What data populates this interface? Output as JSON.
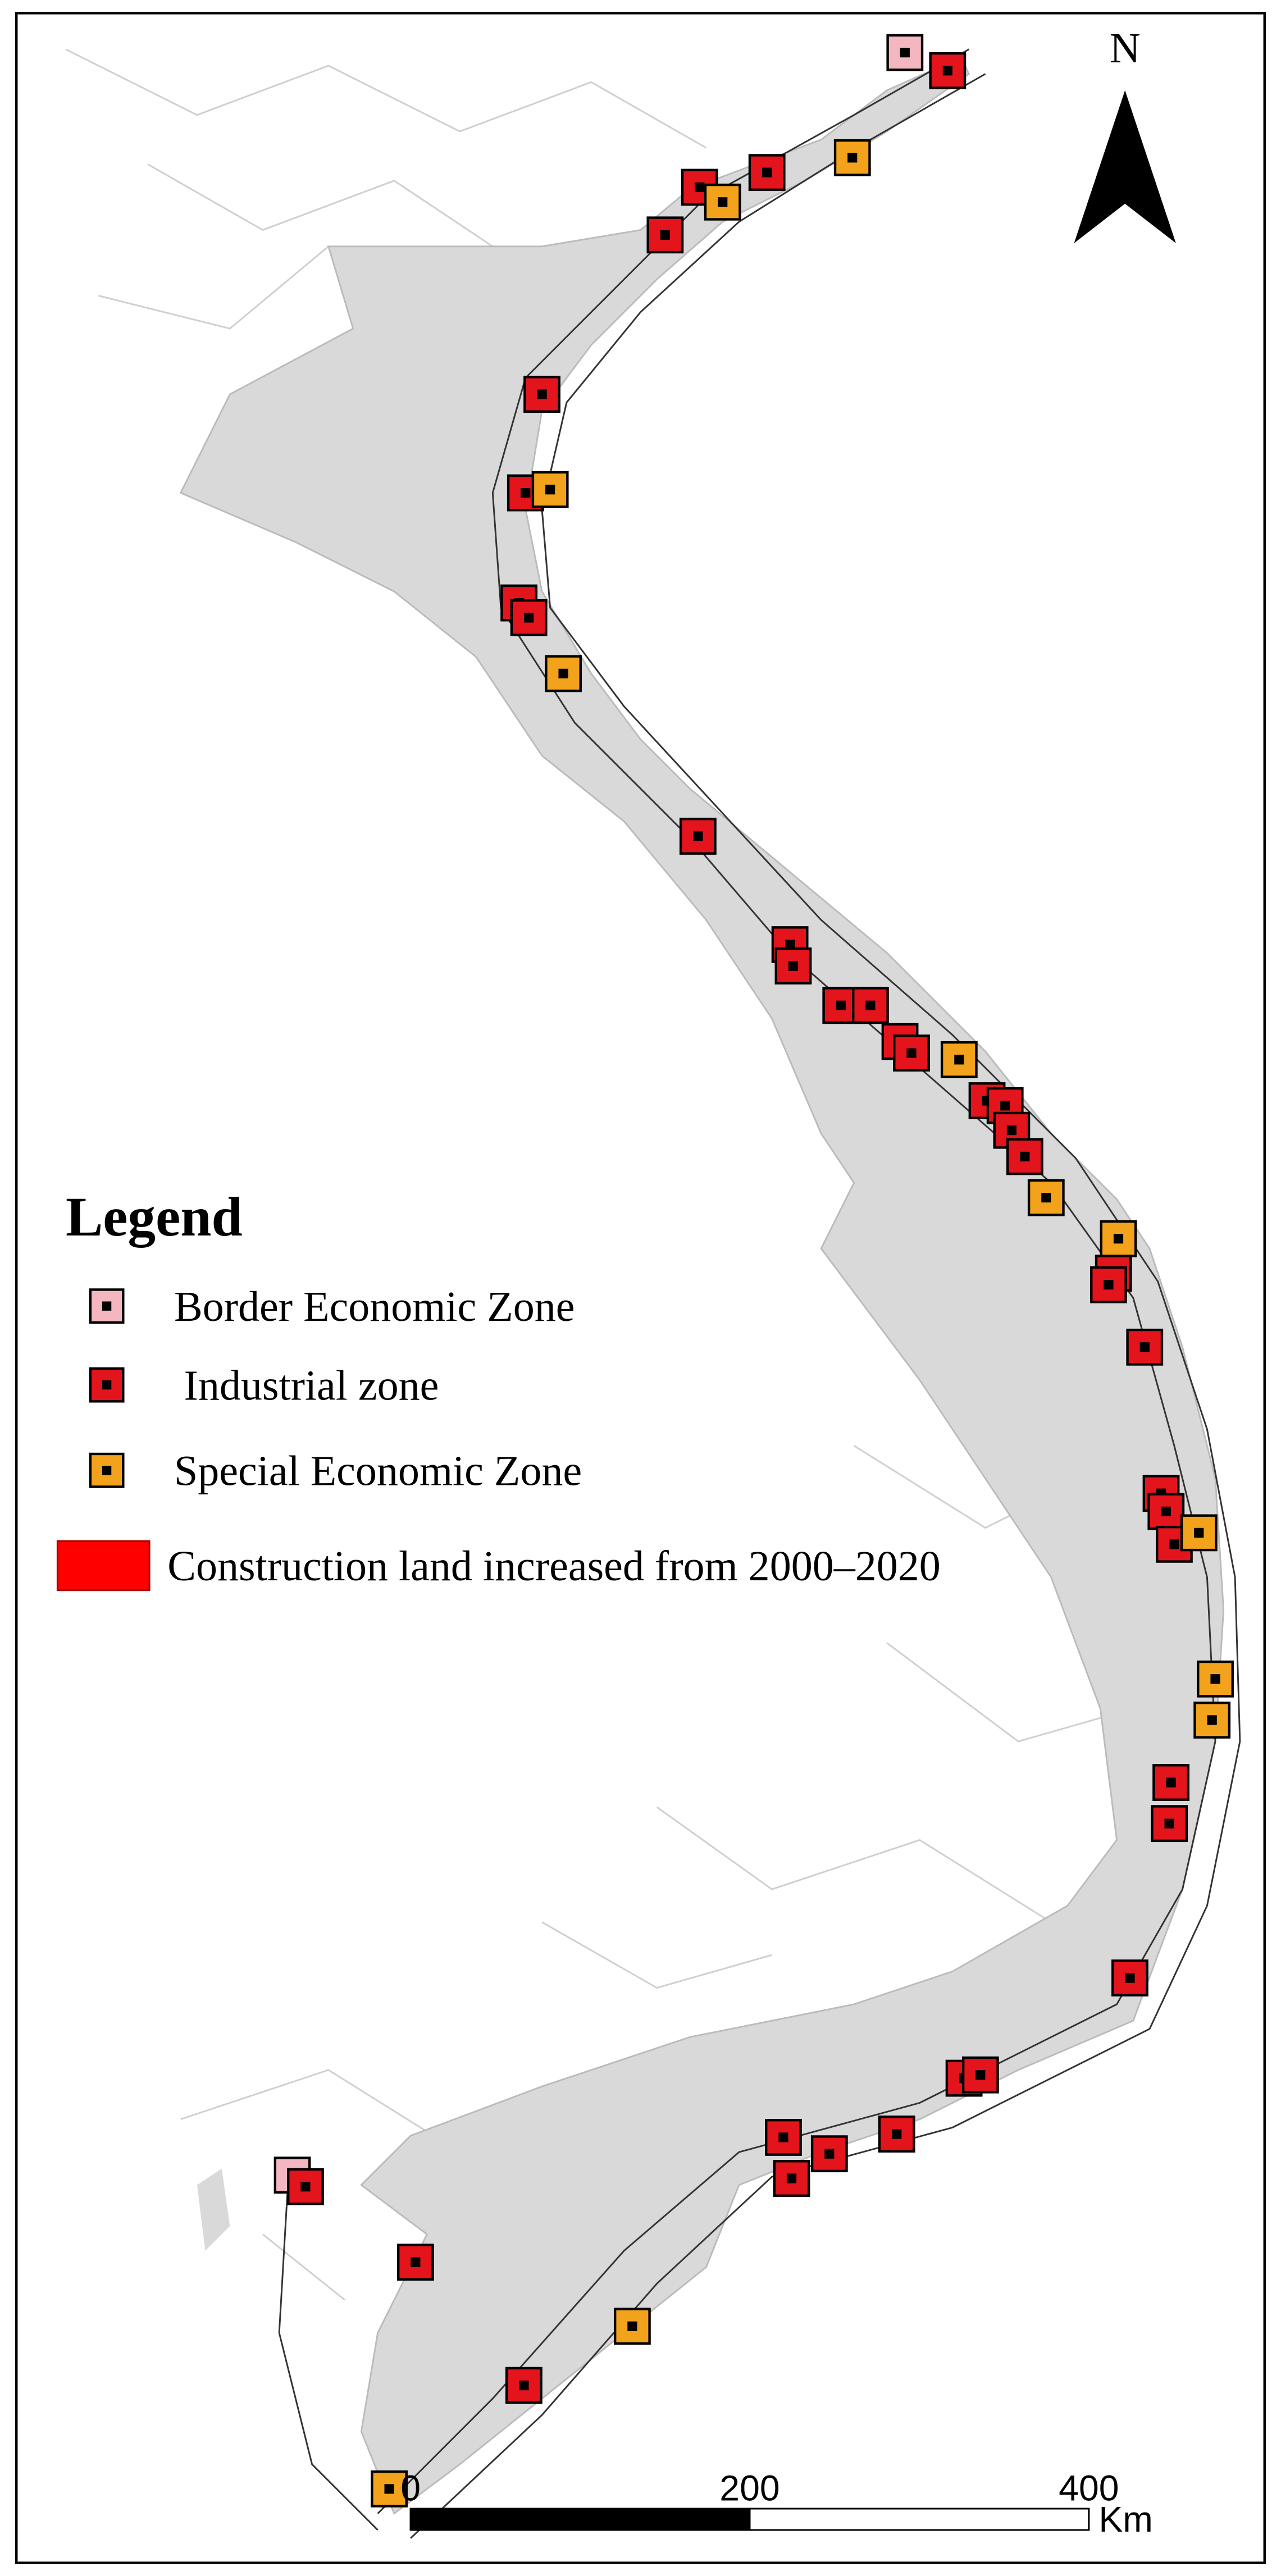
{
  "north_label": "N",
  "legend": {
    "title": "Legend",
    "items": [
      "Border Economic Zone",
      "Industrial zone",
      "Special Economic Zone",
      "Construction land increased from 2000–2020"
    ]
  },
  "scale_bar": {
    "ticks": [
      0,
      200,
      400
    ],
    "unit": "Km"
  }
}
